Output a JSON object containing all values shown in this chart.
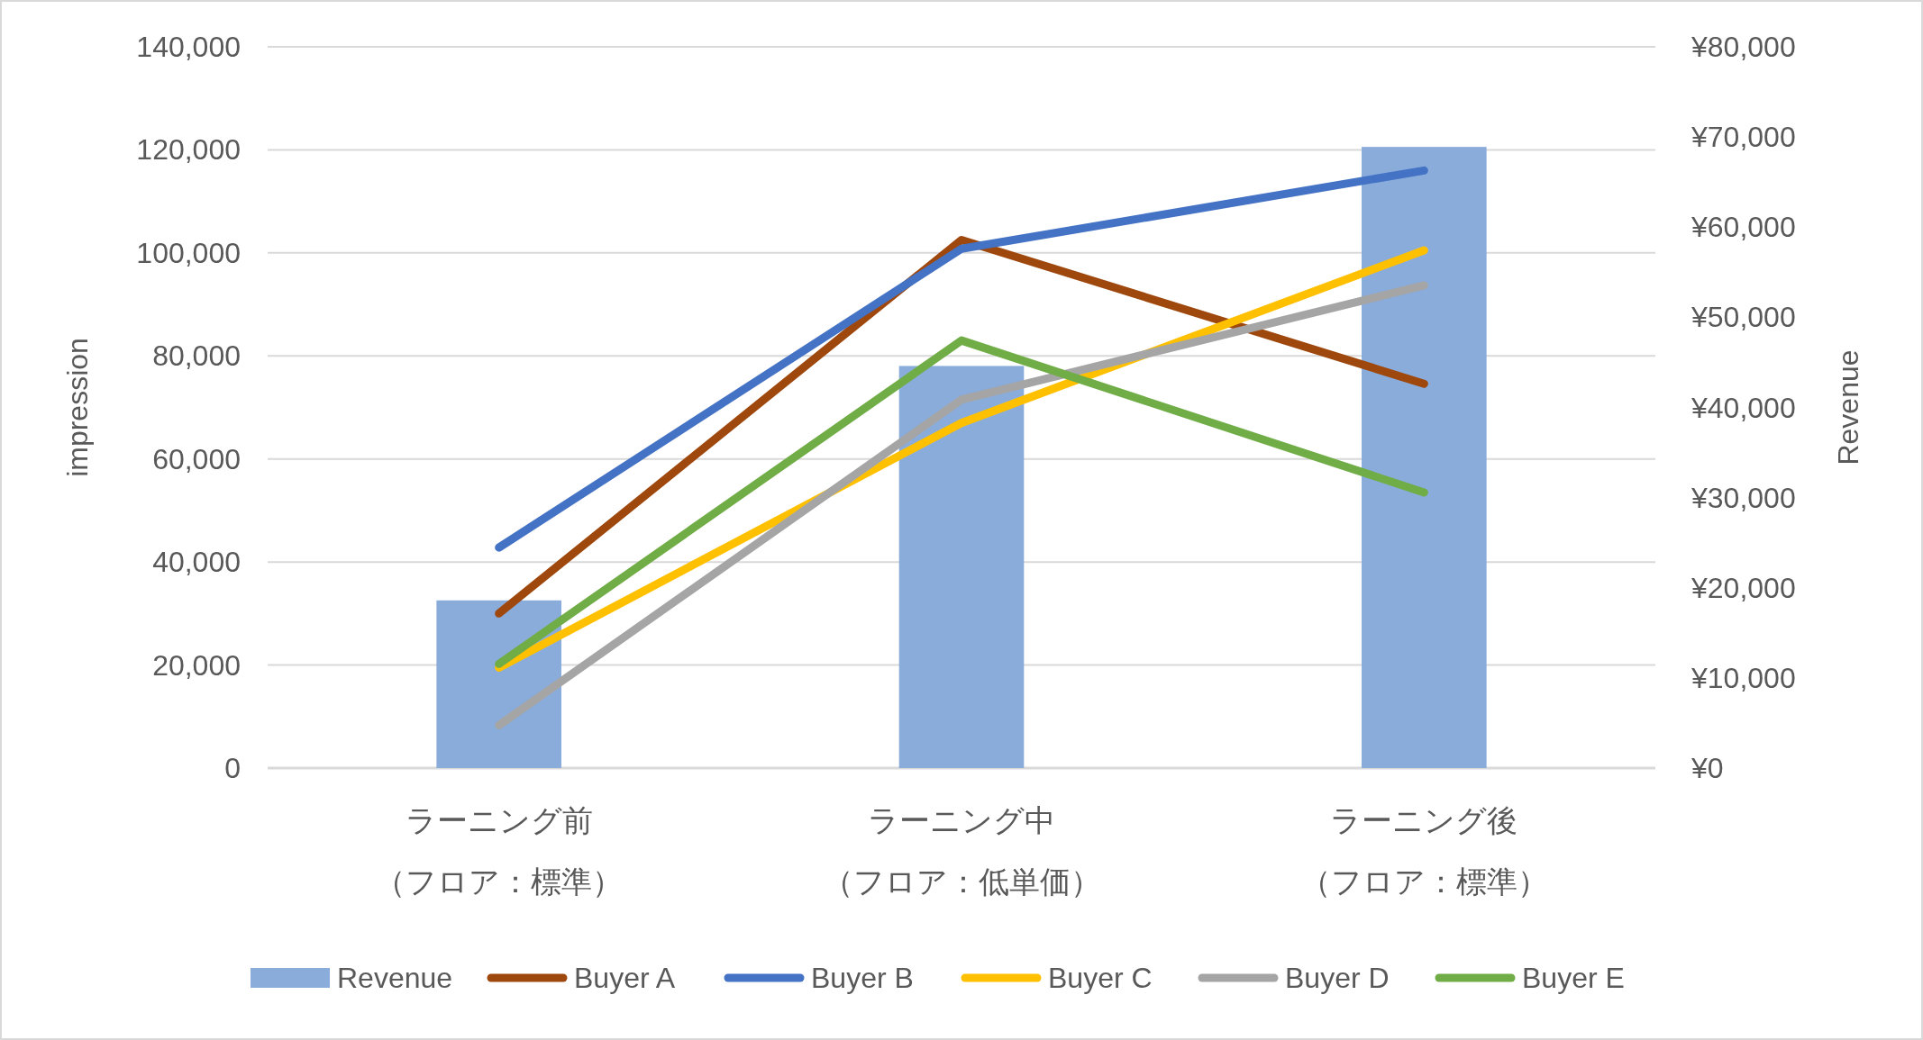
{
  "chart_data": {
    "type": "bar",
    "categories": [
      "ラーニング前（フロア：標準）",
      "ラーニング中（フロア：低単価）",
      "ラーニング後（フロア：標準）"
    ],
    "ylabel": "impression",
    "y2label": "Revenue",
    "ylim": [
      0,
      140000
    ],
    "yticks": [
      {
        "value": 0,
        "label": "0"
      },
      {
        "value": 20000,
        "label": "20,000"
      },
      {
        "value": 40000,
        "label": "40,000"
      },
      {
        "value": 60000,
        "label": "60,000"
      },
      {
        "value": 80000,
        "label": "80,000"
      },
      {
        "value": 100000,
        "label": "100,000"
      },
      {
        "value": 120000,
        "label": "120,000"
      },
      {
        "value": 140000,
        "label": "140,000"
      }
    ],
    "y2lim": [
      0,
      80000
    ],
    "y2ticks": [
      {
        "value": 0,
        "label": "¥0"
      },
      {
        "value": 10000,
        "label": "¥10,000"
      },
      {
        "value": 20000,
        "label": "¥20,000"
      },
      {
        "value": 30000,
        "label": "¥30,000"
      },
      {
        "value": 40000,
        "label": "¥40,000"
      },
      {
        "value": 50000,
        "label": "¥50,000"
      },
      {
        "value": 60000,
        "label": "¥60,000"
      },
      {
        "value": 70000,
        "label": "¥70,000"
      },
      {
        "value": 80000,
        "label": "¥80,000"
      }
    ],
    "grid": "y",
    "legend": "bottom",
    "series": [
      {
        "name": "Revenue",
        "axis": "y2",
        "color": "#89acdb",
        "values": [
          18600,
          44600,
          68900
        ]
      },
      {
        "name": "Buyer A",
        "type": "line",
        "color": "#9e480e",
        "values": [
          30000,
          102500,
          74600
        ]
      },
      {
        "name": "Buyer B",
        "type": "line",
        "color": "#4472c4",
        "values": [
          42800,
          100800,
          116000
        ]
      },
      {
        "name": "Buyer C",
        "type": "line",
        "color": "#ffc000",
        "values": [
          19500,
          67000,
          100500
        ]
      },
      {
        "name": "Buyer D",
        "type": "line",
        "color": "#a5a5a5",
        "values": [
          8300,
          71500,
          93700
        ]
      },
      {
        "name": "Buyer E",
        "type": "line",
        "color": "#70ad47",
        "values": [
          20200,
          83000,
          53500
        ]
      }
    ]
  }
}
